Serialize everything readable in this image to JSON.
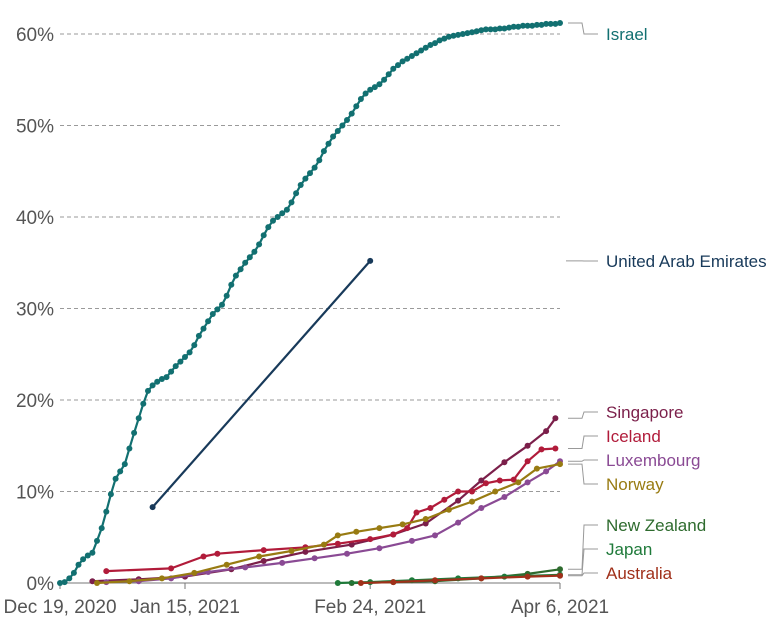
{
  "chart_data": {
    "type": "line",
    "title": "",
    "xlabel": "",
    "ylabel": "",
    "x_range": [
      "2020-12-19",
      "2021-04-06"
    ],
    "ylim": [
      0,
      61
    ],
    "x_ticks": [
      {
        "date": "2020-12-19",
        "label": "Dec 19, 2020"
      },
      {
        "date": "2021-01-15",
        "label": "Jan 15, 2021"
      },
      {
        "date": "2021-02-24",
        "label": "Feb 24, 2021"
      },
      {
        "date": "2021-04-06",
        "label": "Apr 6, 2021"
      }
    ],
    "y_ticks": [
      {
        "value": 0,
        "label": "0%"
      },
      {
        "value": 10,
        "label": "10%"
      },
      {
        "value": 20,
        "label": "20%"
      },
      {
        "value": 30,
        "label": "30%"
      },
      {
        "value": 40,
        "label": "40%"
      },
      {
        "value": 50,
        "label": "50%"
      },
      {
        "value": 60,
        "label": "60%"
      }
    ],
    "grid": "horizontal dashed",
    "legend": "direct labels right",
    "series": [
      {
        "name": "Israel",
        "color": "#127071",
        "points": [
          [
            "2020-12-19",
            0
          ],
          [
            "2020-12-20",
            0.1
          ],
          [
            "2020-12-21",
            0.5
          ],
          [
            "2020-12-22",
            1.1
          ],
          [
            "2020-12-23",
            2.0
          ],
          [
            "2020-12-24",
            2.6
          ],
          [
            "2020-12-25",
            3.0
          ],
          [
            "2020-12-26",
            3.3
          ],
          [
            "2020-12-27",
            4.6
          ],
          [
            "2020-12-28",
            6.0
          ],
          [
            "2020-12-29",
            7.8
          ],
          [
            "2020-12-30",
            9.7
          ],
          [
            "2020-12-31",
            11.4
          ],
          [
            "2021-01-01",
            12.2
          ],
          [
            "2021-01-02",
            13.0
          ],
          [
            "2021-01-03",
            14.7
          ],
          [
            "2021-01-04",
            16.4
          ],
          [
            "2021-01-05",
            18.0
          ],
          [
            "2021-01-06",
            19.6
          ],
          [
            "2021-01-07",
            21.0
          ],
          [
            "2021-01-08",
            21.6
          ],
          [
            "2021-01-09",
            22.0
          ],
          [
            "2021-01-10",
            22.3
          ],
          [
            "2021-01-11",
            22.5
          ],
          [
            "2021-01-12",
            23.1
          ],
          [
            "2021-01-13",
            23.7
          ],
          [
            "2021-01-14",
            24.2
          ],
          [
            "2021-01-15",
            24.7
          ],
          [
            "2021-01-16",
            25.2
          ],
          [
            "2021-01-17",
            26.0
          ],
          [
            "2021-01-18",
            27.0
          ],
          [
            "2021-01-19",
            27.8
          ],
          [
            "2021-01-20",
            28.6
          ],
          [
            "2021-01-21",
            29.4
          ],
          [
            "2021-01-22",
            29.9
          ],
          [
            "2021-01-23",
            30.4
          ],
          [
            "2021-01-24",
            31.4
          ],
          [
            "2021-01-25",
            32.6
          ],
          [
            "2021-01-26",
            33.6
          ],
          [
            "2021-01-27",
            34.3
          ],
          [
            "2021-01-28",
            35.0
          ],
          [
            "2021-01-29",
            35.6
          ],
          [
            "2021-01-30",
            36.2
          ],
          [
            "2021-01-31",
            37.0
          ],
          [
            "2021-02-01",
            38.0
          ],
          [
            "2021-02-02",
            38.9
          ],
          [
            "2021-02-03",
            39.6
          ],
          [
            "2021-02-04",
            40.0
          ],
          [
            "2021-02-05",
            40.4
          ],
          [
            "2021-02-06",
            40.8
          ],
          [
            "2021-02-07",
            41.6
          ],
          [
            "2021-02-08",
            42.6
          ],
          [
            "2021-02-09",
            43.5
          ],
          [
            "2021-02-10",
            44.2
          ],
          [
            "2021-02-11",
            44.8
          ],
          [
            "2021-02-12",
            45.4
          ],
          [
            "2021-02-13",
            46.2
          ],
          [
            "2021-02-14",
            47.2
          ],
          [
            "2021-02-15",
            48.0
          ],
          [
            "2021-02-16",
            48.8
          ],
          [
            "2021-02-17",
            49.4
          ],
          [
            "2021-02-18",
            50.0
          ],
          [
            "2021-02-19",
            50.6
          ],
          [
            "2021-02-20",
            51.3
          ],
          [
            "2021-02-21",
            52.1
          ],
          [
            "2021-02-22",
            52.9
          ],
          [
            "2021-02-23",
            53.5
          ],
          [
            "2021-02-24",
            53.9
          ],
          [
            "2021-02-25",
            54.2
          ],
          [
            "2021-02-26",
            54.5
          ],
          [
            "2021-02-27",
            55.0
          ],
          [
            "2021-02-28",
            55.6
          ],
          [
            "2021-03-01",
            56.2
          ],
          [
            "2021-03-02",
            56.6
          ],
          [
            "2021-03-03",
            57.0
          ],
          [
            "2021-03-04",
            57.3
          ],
          [
            "2021-03-05",
            57.6
          ],
          [
            "2021-03-06",
            57.9
          ],
          [
            "2021-03-07",
            58.2
          ],
          [
            "2021-03-08",
            58.5
          ],
          [
            "2021-03-09",
            58.8
          ],
          [
            "2021-03-10",
            59.0
          ],
          [
            "2021-03-11",
            59.3
          ],
          [
            "2021-03-12",
            59.5
          ],
          [
            "2021-03-13",
            59.7
          ],
          [
            "2021-03-14",
            59.8
          ],
          [
            "2021-03-15",
            59.9
          ],
          [
            "2021-03-16",
            60.0
          ],
          [
            "2021-03-17",
            60.1
          ],
          [
            "2021-03-18",
            60.2
          ],
          [
            "2021-03-19",
            60.3
          ],
          [
            "2021-03-20",
            60.4
          ],
          [
            "2021-03-21",
            60.5
          ],
          [
            "2021-03-22",
            60.5
          ],
          [
            "2021-03-23",
            60.5
          ],
          [
            "2021-03-24",
            60.6
          ],
          [
            "2021-03-25",
            60.6
          ],
          [
            "2021-03-26",
            60.7
          ],
          [
            "2021-03-27",
            60.8
          ],
          [
            "2021-03-28",
            60.8
          ],
          [
            "2021-03-29",
            60.9
          ],
          [
            "2021-03-30",
            60.9
          ],
          [
            "2021-03-31",
            60.9
          ],
          [
            "2021-04-01",
            61.0
          ],
          [
            "2021-04-02",
            61.0
          ],
          [
            "2021-04-03",
            61.1
          ],
          [
            "2021-04-04",
            61.1
          ],
          [
            "2021-04-05",
            61.1
          ],
          [
            "2021-04-06",
            61.2
          ]
        ]
      },
      {
        "name": "United Arab Emirates",
        "color": "#183a5a",
        "points": [
          [
            "2021-01-08",
            8.3
          ],
          [
            "2021-02-24",
            35.2
          ]
        ]
      },
      {
        "name": "Singapore",
        "color": "#7b1f4a",
        "points": [
          [
            "2020-12-26",
            0.2
          ],
          [
            "2021-01-05",
            0.4
          ],
          [
            "2021-01-15",
            0.7
          ],
          [
            "2021-01-25",
            1.5
          ],
          [
            "2021-02-01",
            2.4
          ],
          [
            "2021-02-10",
            3.4
          ],
          [
            "2021-02-20",
            4.2
          ],
          [
            "2021-03-01",
            5.3
          ],
          [
            "2021-03-08",
            6.5
          ],
          [
            "2021-03-15",
            9.0
          ],
          [
            "2021-03-20",
            11.2
          ],
          [
            "2021-03-25",
            13.2
          ],
          [
            "2021-03-30",
            15.0
          ],
          [
            "2021-04-03",
            16.6
          ],
          [
            "2021-04-05",
            18.0
          ]
        ]
      },
      {
        "name": "Iceland",
        "color": "#b11b3a",
        "points": [
          [
            "2020-12-29",
            1.3
          ],
          [
            "2021-01-12",
            1.6
          ],
          [
            "2021-01-19",
            2.9
          ],
          [
            "2021-01-22",
            3.2
          ],
          [
            "2021-02-01",
            3.6
          ],
          [
            "2021-02-10",
            3.9
          ],
          [
            "2021-02-17",
            4.3
          ],
          [
            "2021-02-24",
            4.8
          ],
          [
            "2021-03-01",
            5.3
          ],
          [
            "2021-03-04",
            6.0
          ],
          [
            "2021-03-06",
            7.7
          ],
          [
            "2021-03-09",
            8.2
          ],
          [
            "2021-03-12",
            9.1
          ],
          [
            "2021-03-15",
            10.0
          ],
          [
            "2021-03-18",
            10.0
          ],
          [
            "2021-03-21",
            10.9
          ],
          [
            "2021-03-24",
            11.2
          ],
          [
            "2021-03-27",
            11.3
          ],
          [
            "2021-03-30",
            13.3
          ],
          [
            "2021-04-02",
            14.6
          ],
          [
            "2021-04-05",
            14.7
          ]
        ]
      },
      {
        "name": "Luxembourg",
        "color": "#8a4a94",
        "points": [
          [
            "2020-12-29",
            0.1
          ],
          [
            "2021-01-05",
            0.2
          ],
          [
            "2021-01-12",
            0.5
          ],
          [
            "2021-01-20",
            1.2
          ],
          [
            "2021-01-28",
            1.7
          ],
          [
            "2021-02-05",
            2.2
          ],
          [
            "2021-02-12",
            2.7
          ],
          [
            "2021-02-19",
            3.2
          ],
          [
            "2021-02-26",
            3.8
          ],
          [
            "2021-03-05",
            4.6
          ],
          [
            "2021-03-10",
            5.2
          ],
          [
            "2021-03-15",
            6.6
          ],
          [
            "2021-03-20",
            8.2
          ],
          [
            "2021-03-25",
            9.4
          ],
          [
            "2021-03-30",
            11.0
          ],
          [
            "2021-04-03",
            12.2
          ],
          [
            "2021-04-06",
            13.3
          ]
        ]
      },
      {
        "name": "Norway",
        "color": "#987b12",
        "points": [
          [
            "2020-12-27",
            0.0
          ],
          [
            "2021-01-03",
            0.2
          ],
          [
            "2021-01-10",
            0.5
          ],
          [
            "2021-01-17",
            1.1
          ],
          [
            "2021-01-24",
            2.0
          ],
          [
            "2021-01-31",
            2.9
          ],
          [
            "2021-02-07",
            3.5
          ],
          [
            "2021-02-14",
            4.2
          ],
          [
            "2021-02-17",
            5.2
          ],
          [
            "2021-02-21",
            5.6
          ],
          [
            "2021-02-26",
            6.0
          ],
          [
            "2021-03-03",
            6.4
          ],
          [
            "2021-03-08",
            7.0
          ],
          [
            "2021-03-13",
            8.0
          ],
          [
            "2021-03-18",
            8.9
          ],
          [
            "2021-03-23",
            10.0
          ],
          [
            "2021-03-28",
            11.0
          ],
          [
            "2021-04-01",
            12.5
          ],
          [
            "2021-04-06",
            13.0
          ]
        ]
      },
      {
        "name": "New Zealand",
        "color": "#2e6b2e",
        "points": [
          [
            "2021-02-20",
            0.0
          ],
          [
            "2021-03-01",
            0.1
          ],
          [
            "2021-03-10",
            0.2
          ],
          [
            "2021-03-20",
            0.5
          ],
          [
            "2021-03-30",
            1.0
          ],
          [
            "2021-04-06",
            1.5
          ]
        ]
      },
      {
        "name": "Japan",
        "color": "#1f7a3a",
        "points": [
          [
            "2021-02-17",
            0.0
          ],
          [
            "2021-02-24",
            0.1
          ],
          [
            "2021-03-05",
            0.3
          ],
          [
            "2021-03-15",
            0.5
          ],
          [
            "2021-03-25",
            0.7
          ],
          [
            "2021-04-06",
            0.9
          ]
        ]
      },
      {
        "name": "Australia",
        "color": "#a0301a",
        "points": [
          [
            "2021-02-22",
            0.0
          ],
          [
            "2021-03-01",
            0.1
          ],
          [
            "2021-03-10",
            0.3
          ],
          [
            "2021-03-20",
            0.5
          ],
          [
            "2021-03-30",
            0.7
          ],
          [
            "2021-04-06",
            0.8
          ]
        ]
      }
    ]
  }
}
